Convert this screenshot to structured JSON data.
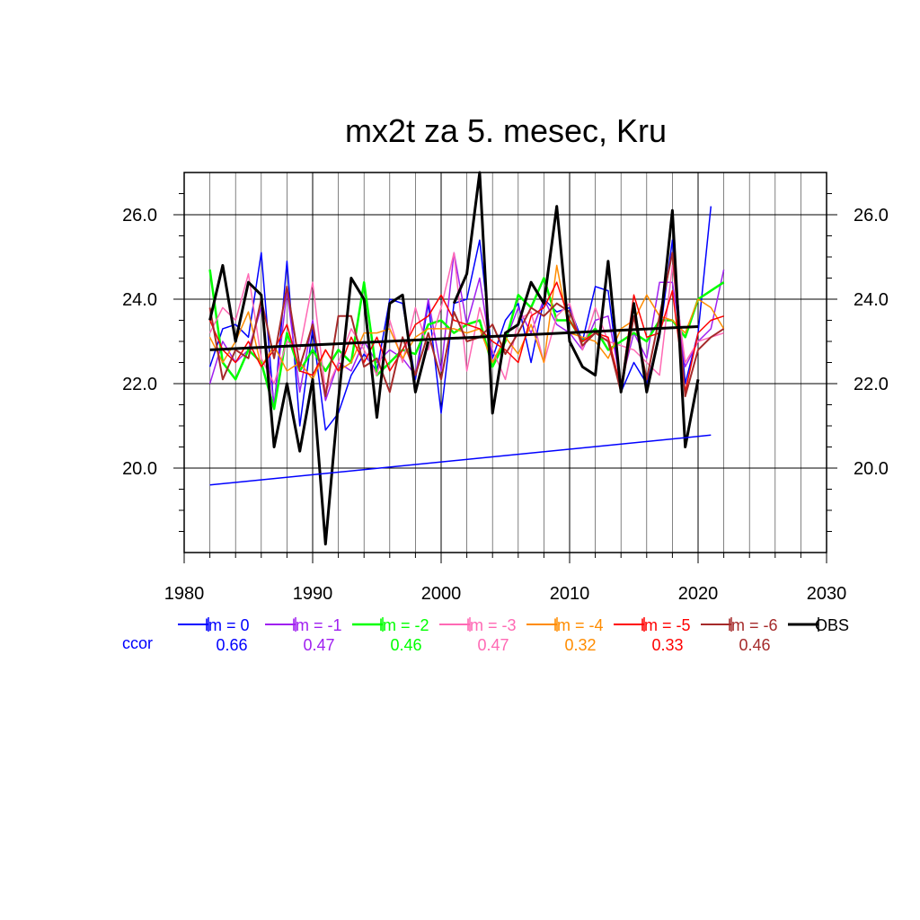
{
  "chart_data": {
    "type": "line",
    "title": "mx2t za 5. mesec, Kru",
    "xlim": [
      1980,
      2030
    ],
    "ylim": [
      18.0,
      27.0
    ],
    "xticks": [
      1980,
      1990,
      2000,
      2010,
      2020,
      2030
    ],
    "xtick_labels": [
      "1980",
      "1990",
      "2000",
      "2010",
      "2020",
      "2030"
    ],
    "yticks": [
      20.0,
      22.0,
      24.0,
      26.0
    ],
    "ytick_labels": [
      "20.0",
      "22.0",
      "24.0",
      "26.0"
    ],
    "grid": true,
    "ccor_label": "ccor",
    "series": [
      {
        "name": "lm = 0",
        "ccor": "0.66",
        "color": "#0000ff",
        "width": 1.5,
        "x": [
          1982,
          1983,
          1984,
          1985,
          1986,
          1987,
          1988,
          1989,
          1990,
          1991,
          1992,
          1993,
          1994,
          1995,
          1996,
          1997,
          1998,
          1999,
          2000,
          2001,
          2002,
          2003,
          2004,
          2005,
          2006,
          2007,
          2008,
          2009,
          2010,
          2011,
          2012,
          2013,
          2014,
          2015,
          2016,
          2017,
          2018,
          2019,
          2020,
          2021
        ],
        "y": [
          22.4,
          23.3,
          23.4,
          23.1,
          25.1,
          21.4,
          24.9,
          21.0,
          23.3,
          20.9,
          21.3,
          22.2,
          22.7,
          22.3,
          24.0,
          23.9,
          22.1,
          23.9,
          21.3,
          23.9,
          24.0,
          25.4,
          22.6,
          23.5,
          23.9,
          22.5,
          24.0,
          23.7,
          23.8,
          23.0,
          24.3,
          24.2,
          21.8,
          22.5,
          22.0,
          23.1,
          25.4,
          22.0,
          23.2,
          26.2
        ]
      },
      {
        "name": "lm = -1",
        "ccor": "0.47",
        "color": "#a020f0",
        "width": 1.5,
        "x": [
          1982,
          1983,
          1984,
          1985,
          1986,
          1987,
          1988,
          1989,
          1990,
          1991,
          1992,
          1993,
          1994,
          1995,
          1996,
          1997,
          1998,
          1999,
          2000,
          2001,
          2002,
          2003,
          2004,
          2005,
          2006,
          2007,
          2008,
          2009,
          2010,
          2011,
          2012,
          2013,
          2014,
          2015,
          2016,
          2017,
          2018,
          2019,
          2020,
          2021,
          2022
        ],
        "y": [
          22.0,
          23.0,
          22.5,
          22.8,
          23.8,
          21.5,
          24.2,
          21.8,
          23.5,
          21.6,
          22.5,
          22.3,
          23.0,
          22.5,
          22.8,
          22.6,
          22.2,
          24.0,
          22.3,
          25.1,
          23.4,
          24.5,
          22.5,
          23.0,
          23.8,
          23.2,
          24.0,
          23.4,
          23.2,
          22.8,
          23.5,
          23.6,
          22.0,
          23.2,
          22.6,
          24.4,
          24.4,
          22.4,
          23.0,
          23.3,
          24.7
        ]
      },
      {
        "name": "lm = -2",
        "ccor": "0.46",
        "color": "#00ff00",
        "width": 2.5,
        "x": [
          1982,
          1983,
          1984,
          1985,
          1986,
          1987,
          1988,
          1989,
          1990,
          1991,
          1992,
          1993,
          1994,
          1995,
          1996,
          1997,
          1998,
          1999,
          2000,
          2001,
          2002,
          2003,
          2004,
          2005,
          2006,
          2007,
          2008,
          2009,
          2010,
          2011,
          2012,
          2013,
          2014,
          2015,
          2016,
          2017,
          2018,
          2019,
          2020,
          2021,
          2022
        ],
        "y": [
          24.7,
          22.5,
          22.1,
          22.8,
          22.5,
          21.4,
          23.2,
          22.3,
          22.8,
          22.3,
          22.8,
          22.5,
          24.4,
          22.2,
          22.5,
          22.8,
          22.7,
          23.4,
          23.5,
          23.2,
          23.4,
          23.5,
          22.4,
          23.0,
          24.1,
          23.8,
          24.5,
          23.5,
          23.5,
          23.0,
          23.3,
          22.8,
          23.0,
          23.2,
          23.0,
          23.5,
          23.5,
          23.1,
          24.0,
          24.2,
          24.4
        ]
      },
      {
        "name": "lm = -3",
        "ccor": "0.47",
        "color": "#ff69b4",
        "width": 1.5,
        "x": [
          1982,
          1983,
          1984,
          1985,
          1986,
          1987,
          1988,
          1989,
          1990,
          1991,
          1992,
          1993,
          1994,
          1995,
          1996,
          1997,
          1998,
          1999,
          2000,
          2001,
          2002,
          2003,
          2004,
          2005,
          2006,
          2007,
          2008,
          2009,
          2010,
          2011,
          2012,
          2013,
          2014,
          2015,
          2016,
          2017,
          2018,
          2019,
          2020,
          2021,
          2022
        ],
        "y": [
          23.2,
          23.8,
          23.5,
          24.6,
          22.6,
          22.0,
          23.0,
          22.8,
          24.4,
          21.8,
          22.5,
          23.3,
          22.8,
          22.2,
          23.5,
          22.5,
          23.8,
          22.8,
          23.8,
          25.1,
          22.3,
          23.8,
          22.8,
          22.1,
          23.5,
          23.7,
          22.5,
          23.6,
          23.9,
          22.8,
          23.8,
          23.0,
          22.9,
          22.8,
          22.5,
          22.2,
          24.8,
          22.5,
          23.0,
          23.1,
          23.2
        ]
      },
      {
        "name": "lm = -4",
        "ccor": "0.32",
        "color": "#ff8c00",
        "width": 1.5,
        "x": [
          1982,
          1983,
          1984,
          1985,
          1986,
          1987,
          1988,
          1989,
          1990,
          1991,
          1992,
          1993,
          1994,
          1995,
          1996,
          1997,
          1998,
          1999,
          2000,
          2001,
          2002,
          2003,
          2004,
          2005,
          2006,
          2007,
          2008,
          2009,
          2010,
          2011,
          2012,
          2013,
          2014,
          2015,
          2016,
          2017,
          2018,
          2019,
          2020,
          2021,
          2022
        ],
        "y": [
          23.1,
          22.5,
          23.0,
          23.7,
          22.4,
          22.9,
          22.3,
          22.5,
          22.1,
          22.8,
          22.3,
          22.5,
          23.2,
          23.2,
          23.3,
          22.6,
          23.1,
          23.3,
          23.3,
          23.3,
          23.2,
          23.3,
          22.5,
          23.1,
          22.7,
          23.4,
          22.5,
          24.8,
          23.2,
          23.1,
          23.0,
          22.6,
          23.3,
          23.5,
          24.1,
          23.6,
          23.5,
          23.2,
          24.0,
          23.8,
          23.3
        ]
      },
      {
        "name": "lm = -5",
        "ccor": "0.33",
        "color": "#ff0000",
        "width": 1.5,
        "x": [
          1982,
          1983,
          1984,
          1985,
          1986,
          1987,
          1988,
          1989,
          1990,
          1991,
          1992,
          1993,
          1994,
          1995,
          1996,
          1997,
          1998,
          1999,
          2000,
          2001,
          2002,
          2003,
          2004,
          2005,
          2006,
          2007,
          2008,
          2009,
          2010,
          2011,
          2012,
          2013,
          2014,
          2015,
          2016,
          2017,
          2018,
          2019,
          2020,
          2021,
          2022
        ],
        "y": [
          23.5,
          22.8,
          22.5,
          23.0,
          22.4,
          22.8,
          23.4,
          22.3,
          22.2,
          22.8,
          22.3,
          23.1,
          22.5,
          23.1,
          22.3,
          22.8,
          23.4,
          23.6,
          24.1,
          23.5,
          23.4,
          23.3,
          23.0,
          22.8,
          22.5,
          23.6,
          23.8,
          24.4,
          23.5,
          23.0,
          23.2,
          23.1,
          21.9,
          24.1,
          23.1,
          23.2,
          24.2,
          21.8,
          23.2,
          23.5,
          23.6
        ]
      },
      {
        "name": "lm = -6",
        "ccor": "0.46",
        "color": "#a52a2a",
        "width": 2.0,
        "x": [
          1982,
          1983,
          1984,
          1985,
          1986,
          1987,
          1988,
          1989,
          1990,
          1991,
          1992,
          1993,
          1994,
          1995,
          1996,
          1997,
          1998,
          1999,
          2000,
          2001,
          2002,
          2003,
          2004,
          2005,
          2006,
          2007,
          2008,
          2009,
          2010,
          2011,
          2012,
          2013,
          2014,
          2015,
          2016,
          2017,
          2018,
          2019,
          2020,
          2021,
          2022
        ],
        "y": [
          23.8,
          22.1,
          22.8,
          22.6,
          24.0,
          22.6,
          24.3,
          22.4,
          23.4,
          21.7,
          23.6,
          23.6,
          22.4,
          22.6,
          21.8,
          23.1,
          22.2,
          23.2,
          22.1,
          23.7,
          23.0,
          23.1,
          23.4,
          22.7,
          23.2,
          23.8,
          23.6,
          23.9,
          23.7,
          22.9,
          23.2,
          23.0,
          21.8,
          23.6,
          22.1,
          23.6,
          25.1,
          21.7,
          22.8,
          23.1,
          23.3
        ]
      },
      {
        "name": "OBS",
        "ccor": "",
        "color": "#000000",
        "width": 3.0,
        "x": [
          1982,
          1983,
          1984,
          1985,
          1986,
          1987,
          1988,
          1989,
          1990,
          1991,
          1992,
          1993,
          1994,
          1995,
          1996,
          1997,
          1998,
          1999,
          2000
        ],
        "y": [
          23.5,
          24.8,
          23.0,
          24.4,
          24.1,
          20.5,
          22.0,
          20.4,
          22.1,
          18.2,
          21.6,
          24.5,
          24.0,
          21.2,
          23.9,
          24.1,
          21.8,
          23.0,
          null
        ],
        "x2": [
          2001,
          2002,
          2003,
          2004,
          2005,
          2006,
          2007,
          2008,
          2009,
          2010,
          2011,
          2012,
          2013,
          2014,
          2015,
          2016,
          2017,
          2018,
          2019,
          2020
        ],
        "y2": [
          23.9,
          24.6,
          27.0,
          21.3,
          23.2,
          23.4,
          24.4,
          23.9,
          26.2,
          23.0,
          22.4,
          22.2,
          24.9,
          21.8,
          23.9,
          21.8,
          23.2,
          26.1,
          20.5,
          22.1
        ]
      }
    ],
    "trends": [
      {
        "color": "#0000ff",
        "width": 1.5,
        "x": [
          1982,
          2021
        ],
        "y": [
          19.6,
          20.78
        ]
      },
      {
        "color": "#000000",
        "width": 3.0,
        "x": [
          1982,
          2020
        ],
        "y": [
          22.8,
          23.35
        ]
      }
    ]
  }
}
